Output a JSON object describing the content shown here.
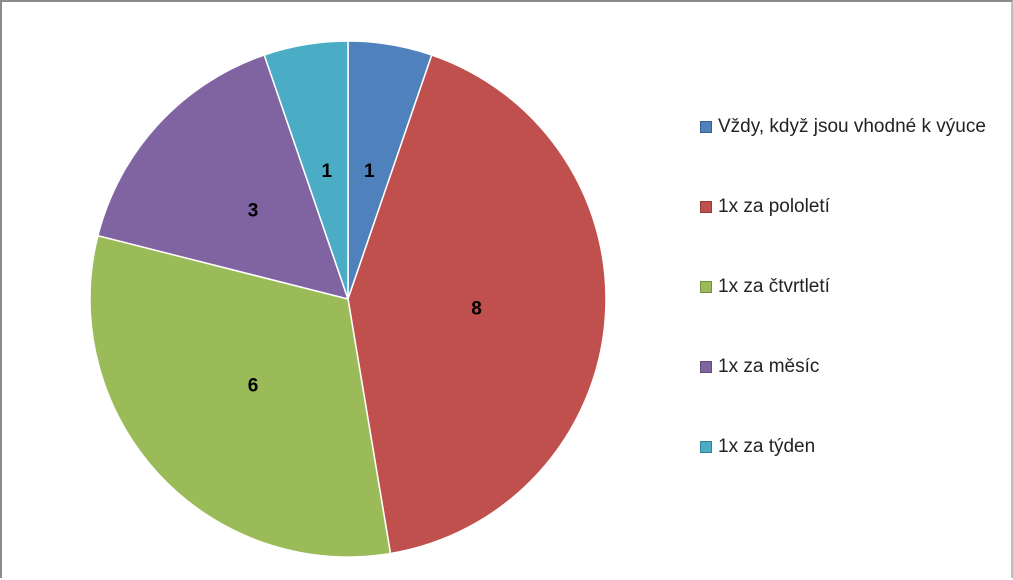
{
  "chart_data": {
    "type": "pie",
    "categories": [
      "Vždy, když jsou vhodné k výuce",
      "1x za pololetí",
      "1x za čtvrtletí",
      "1x za měsíc",
      "1x za týden"
    ],
    "values": [
      1,
      8,
      6,
      3,
      1
    ],
    "colors": [
      "#4f81bd",
      "#c0504d",
      "#9bbb59",
      "#8064a2",
      "#4bacc6"
    ],
    "legend": "right"
  }
}
